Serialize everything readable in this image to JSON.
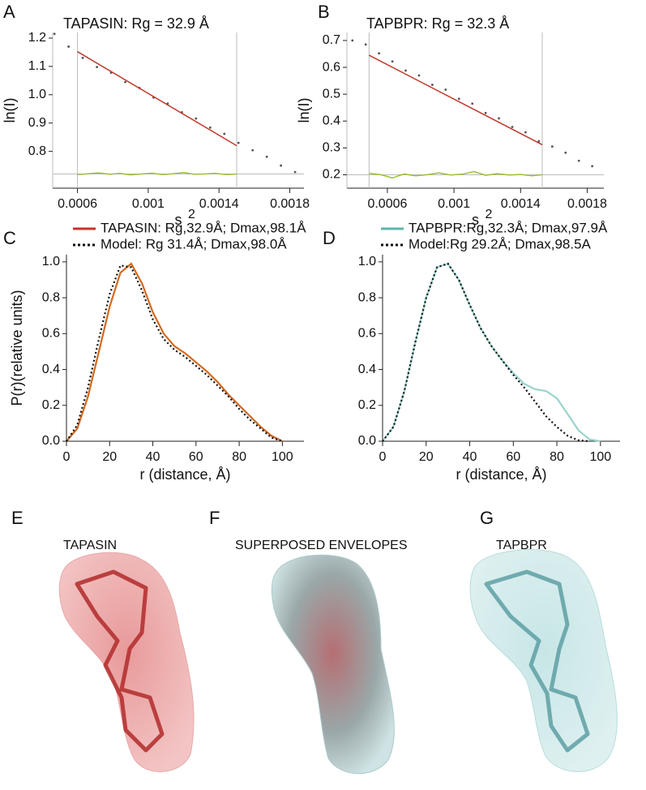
{
  "chart_data": [
    {
      "type": "scatter",
      "panel": "A",
      "title": "TAPASIN:  Rg = 32.9 Å",
      "x_label": "s",
      "x_label_exponent": "2",
      "y_label": "ln(I)",
      "xlim": [
        0.00046,
        0.00188
      ],
      "ylim": [
        0.67,
        1.22
      ],
      "xticks": [
        0.0006,
        0.001,
        0.0014,
        0.0018
      ],
      "yticks": [
        0.8,
        0.9,
        {
          "value": 1,
          "label": "1.0"
        },
        1.1,
        1.2
      ],
      "vlines": [
        0.0006,
        0.0015
      ],
      "hline": 0.72,
      "series": [
        {
          "mode": "markers",
          "color": "#555555",
          "x": [
            0.00047,
            0.00055,
            0.00063,
            0.00071,
            0.00079,
            0.00087,
            0.00095,
            0.00103,
            0.00111,
            0.00119,
            0.00127,
            0.00135,
            0.00143,
            0.00151,
            0.00159,
            0.00167,
            0.00175,
            0.00183
          ],
          "values": [
            1.215,
            1.17,
            1.13,
            1.098,
            1.078,
            1.045,
            1.024,
            0.99,
            0.969,
            0.938,
            0.916,
            0.884,
            0.862,
            0.83,
            0.804,
            0.781,
            0.75,
            0.727
          ]
        },
        {
          "mode": "line",
          "color": "#c0392b",
          "x": [
            0.0006,
            0.0015
          ],
          "values": [
            1.152,
            0.82
          ]
        },
        {
          "mode": "line",
          "color": "#9cbf3b",
          "x": [
            0.0006,
            0.00066,
            0.00072,
            0.00078,
            0.00084,
            0.0009,
            0.00096,
            0.00102,
            0.00108,
            0.00114,
            0.0012,
            0.00126,
            0.00132,
            0.00138,
            0.00144,
            0.0015
          ],
          "values": [
            0.718,
            0.721,
            0.724,
            0.719,
            0.722,
            0.717,
            0.72,
            0.723,
            0.718,
            0.721,
            0.725,
            0.719,
            0.72,
            0.722,
            0.718,
            0.72
          ]
        }
      ]
    },
    {
      "type": "scatter",
      "panel": "B",
      "title": "TAPBPR:  Rg = 32.3 Å",
      "x_label": "s",
      "x_label_exponent": "2",
      "y_label": "ln(I)",
      "xlim": [
        0.000357,
        0.0019
      ],
      "ylim": [
        0.15,
        0.73
      ],
      "xticks": [
        0.0006,
        0.001,
        0.0014,
        0.0018
      ],
      "yticks": [
        0.2,
        0.3,
        0.4,
        0.5,
        0.6,
        0.7
      ],
      "vlines": [
        0.00049,
        0.00153
      ],
      "hline": 0.2,
      "series": [
        {
          "mode": "markers",
          "color": "#555555",
          "x": [
            0.00039,
            0.00047,
            0.00055,
            0.00063,
            0.00071,
            0.00079,
            0.00087,
            0.00095,
            0.00103,
            0.00111,
            0.00119,
            0.00127,
            0.00135,
            0.00143,
            0.00151,
            0.00159,
            0.00167,
            0.00175,
            0.00183
          ],
          "values": [
            0.7,
            0.685,
            0.652,
            0.622,
            0.588,
            0.57,
            0.535,
            0.517,
            0.483,
            0.465,
            0.43,
            0.41,
            0.378,
            0.358,
            0.325,
            0.305,
            0.282,
            0.252,
            0.232
          ]
        },
        {
          "mode": "line",
          "color": "#c0392b",
          "x": [
            0.00049,
            0.00153
          ],
          "values": [
            0.645,
            0.312
          ]
        },
        {
          "mode": "line",
          "color": "#9cbf3b",
          "x": [
            0.00049,
            0.00056,
            0.00063,
            0.0007,
            0.00077,
            0.00084,
            0.00091,
            0.00098,
            0.00105,
            0.00112,
            0.00119,
            0.00126,
            0.00133,
            0.0014,
            0.00147,
            0.00153
          ],
          "values": [
            0.205,
            0.2,
            0.188,
            0.203,
            0.196,
            0.2,
            0.207,
            0.199,
            0.202,
            0.212,
            0.198,
            0.204,
            0.199,
            0.201,
            0.196,
            0.2
          ]
        }
      ]
    },
    {
      "type": "line",
      "panel": "C",
      "x_label": "r (distance, Å)",
      "y_label": "P(r)(relative units)",
      "xlim": [
        0,
        110
      ],
      "ylim": [
        0,
        1.04
      ],
      "xticks": [
        0,
        20,
        40,
        60,
        80,
        100
      ],
      "yticks": [
        {
          "value": 0,
          "label": "0.0"
        },
        0.2,
        0.4,
        0.6,
        0.8,
        {
          "value": 1,
          "label": "1.0"
        }
      ],
      "x": [
        0,
        5,
        10,
        15,
        20,
        25,
        30,
        35,
        40,
        45,
        50,
        55,
        60,
        65,
        70,
        75,
        80,
        85,
        90,
        95,
        100
      ],
      "series": [
        {
          "name": "TAPASIN: Rg,32.9Å; Dmax,98.1Å",
          "color": "#d2691e",
          "legend_color": "#c8302a",
          "dash": false,
          "values": [
            0,
            0.07,
            0.25,
            0.5,
            0.75,
            0.94,
            0.99,
            0.88,
            0.72,
            0.6,
            0.53,
            0.49,
            0.44,
            0.39,
            0.33,
            0.26,
            0.2,
            0.14,
            0.08,
            0.03,
            0
          ]
        },
        {
          "name": "Model: Rg 31.4Å; Dmax,98.0Å",
          "color": "#111111",
          "dash": true,
          "values": [
            0,
            0.09,
            0.3,
            0.57,
            0.82,
            0.98,
            0.97,
            0.84,
            0.68,
            0.57,
            0.51,
            0.47,
            0.42,
            0.37,
            0.31,
            0.25,
            0.18,
            0.12,
            0.07,
            0.02,
            0
          ]
        }
      ]
    },
    {
      "type": "line",
      "panel": "D",
      "x_label": "r (distance, Å)",
      "xlim": [
        0,
        109
      ],
      "ylim": [
        0,
        1.04
      ],
      "xticks": [
        0,
        20,
        40,
        60,
        80,
        100
      ],
      "yticks": [
        {
          "value": 0,
          "label": "0.0"
        },
        0.2,
        0.4,
        0.6,
        0.8,
        {
          "value": 1,
          "label": "1.0"
        }
      ],
      "x": [
        0,
        5,
        10,
        15,
        20,
        25,
        30,
        35,
        40,
        45,
        50,
        55,
        60,
        65,
        70,
        75,
        80,
        85,
        90,
        95,
        100
      ],
      "series": [
        {
          "name": "TAPBPR:Rg,32.3Å; Dmax,97.9Å",
          "color": "#9ad3cc",
          "legend_color": "#5fb3ad",
          "dash": false,
          "values": [
            0,
            0.08,
            0.28,
            0.55,
            0.8,
            0.97,
            0.99,
            0.9,
            0.76,
            0.63,
            0.53,
            0.45,
            0.38,
            0.32,
            0.29,
            0.28,
            0.24,
            0.15,
            0.06,
            0.01,
            0
          ]
        },
        {
          "name": "Model:Rg 29.2Å; Dmax,98.5A",
          "color": "#111111",
          "dash": true,
          "values": [
            0,
            0.08,
            0.28,
            0.55,
            0.8,
            0.97,
            0.99,
            0.9,
            0.76,
            0.63,
            0.53,
            0.45,
            0.37,
            0.3,
            0.22,
            0.14,
            0.08,
            0.03,
            0.005,
            0,
            null
          ]
        }
      ]
    }
  ],
  "structures": [
    {
      "panel": "E",
      "caption": "TAPASIN"
    },
    {
      "panel": "F",
      "caption": "SUPERPOSED ENVELOPES"
    },
    {
      "panel": "G",
      "caption": "TAPBPR"
    }
  ]
}
